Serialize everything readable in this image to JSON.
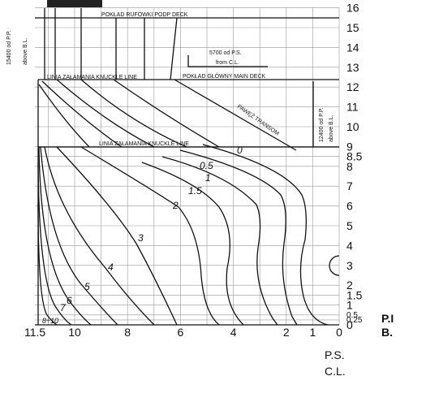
{
  "waterlines": [
    16,
    15,
    14,
    13,
    12,
    11,
    10,
    9,
    8.5,
    8,
    7,
    6,
    5,
    4,
    3,
    2,
    1.5,
    1,
    0.5,
    0.25,
    0
  ],
  "stations": [
    11.5,
    10,
    8,
    6,
    4,
    2,
    1,
    0
  ],
  "curve_labels": [
    "0",
    "0.5",
    "1",
    "1.5",
    "2",
    "3",
    "4",
    "5",
    "6",
    "7",
    "8÷10"
  ],
  "labels": {
    "poop_deck": "POKŁAD RUFÓWKI   PODP  DECK",
    "offset_1": "5700  od  P.S.",
    "offset_2": "from  C.L.",
    "knuckle_upper": "LINIA ZAŁAMANIA   KNUCKLE LINE",
    "main_deck": "POKŁAD GŁÓWNY   MAIN  DECK",
    "transom": "PAWĘŻ  TRANSOM",
    "knuckle_lower": "LINIA ZAŁAMANIA   KNUCKLE  LINE",
    "height_left_1": "15400 od P.P.",
    "height_left_2": "above B.L.",
    "height_right_1": "12400 od P.P.",
    "height_right_2": "above B.L.",
    "ps": "P.S.",
    "cl": "C.L.",
    "pp_right": "P.I",
    "bl_right": "B."
  }
}
